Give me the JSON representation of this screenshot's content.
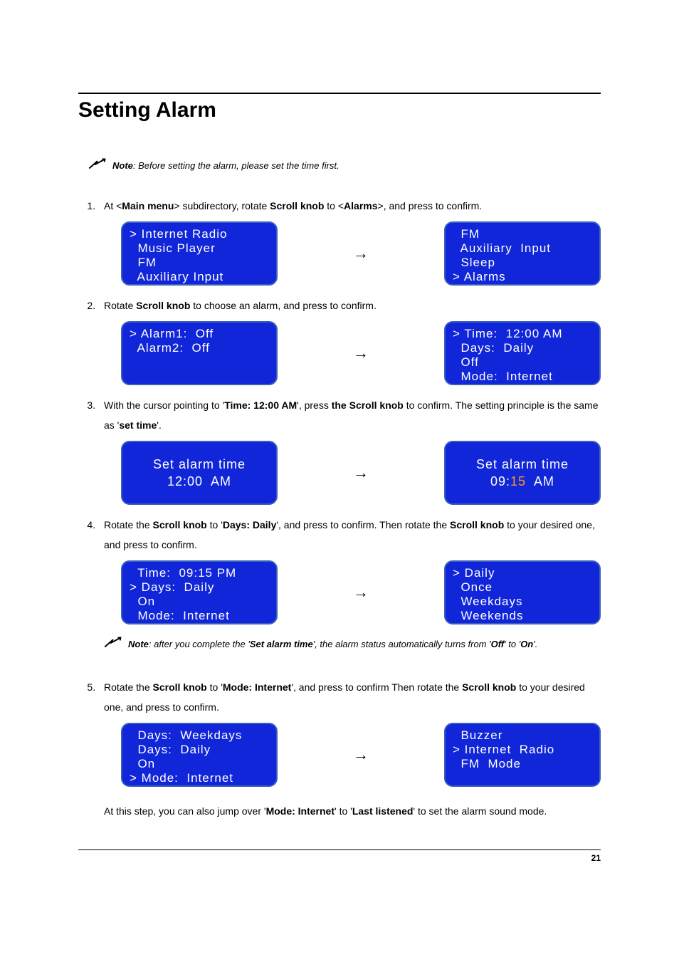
{
  "title": "Setting Alarm",
  "page_number": "21",
  "colors": {
    "screen_bg": "#1026d8",
    "screen_border": "#3a5fbf",
    "screen_text": "#ffffff",
    "highlight": "#ff9a1a"
  },
  "notes": {
    "n1_prefix": "Note",
    "n1_body": ": Before setting the alarm, please set the time first.",
    "n2_prefix": "Note",
    "n2_body_a": ": after you complete the '",
    "n2_bold": "Set alarm time",
    "n2_body_b": "', the alarm status automatically turns from '",
    "n2_off": "Off",
    "n2_body_c": "' to '",
    "n2_on": "On",
    "n2_body_d": "'."
  },
  "steps": {
    "s1_a": "At <",
    "s1_b": "Main menu",
    "s1_c": "> subdirectory, rotate ",
    "s1_d": "Scroll knob",
    "s1_e": " to <",
    "s1_f": "Alarms",
    "s1_g": ">, and press to confirm.",
    "s2_a": "Rotate ",
    "s2_b": "Scroll knob",
    "s2_c": " to choose an alarm, and press to confirm.",
    "s3_a": "With the cursor pointing to '",
    "s3_b": "Time: 12:00 AM",
    "s3_c": "', press ",
    "s3_d": "the Scroll knob",
    "s3_e": " to confirm. The setting principle is the same as '",
    "s3_f": "set time",
    "s3_g": "'.",
    "s4_a": "Rotate the ",
    "s4_b": "Scroll knob",
    "s4_c": " to '",
    "s4_d": "Days: Daily",
    "s4_e": "', and press to confirm. Then rotate the ",
    "s4_f": "Scroll knob",
    "s4_g": " to your desired one, and press to confirm.",
    "s5_a": "Rotate the ",
    "s5_b": "Scroll knob",
    "s5_c": " to '",
    "s5_d": "Mode: Internet",
    "s5_e": "', and press to confirm Then rotate the ",
    "s5_f": "Scroll knob",
    "s5_g": " to your desired one, and press to confirm.",
    "s5_tail_a": "At this step, you can also jump over '",
    "s5_tail_b": "Mode: Internet",
    "s5_tail_c": "' to '",
    "s5_tail_d": "Last listened",
    "s5_tail_e": "' to set the alarm sound mode."
  },
  "screens": {
    "r1a": {
      "caret_idx": 0,
      "lines": [
        "Internet Radio",
        "Music Player",
        "FM",
        "Auxiliary Input"
      ]
    },
    "r1b": {
      "caret_idx": 3,
      "lines": [
        "FM",
        "Auxiliary  Input",
        "Sleep",
        "Alarms"
      ]
    },
    "r2a": {
      "caret_idx": 0,
      "lines": [
        "Alarm1:  Off",
        "Alarm2:  Off"
      ]
    },
    "r2b": {
      "caret_idx": 0,
      "lines": [
        "Time:  12:00 AM",
        "Days:  Daily",
        "Off",
        "Mode:  Internet"
      ]
    },
    "r3a": {
      "center": true,
      "title": "Set alarm time",
      "value": "12:00  AM"
    },
    "r3b": {
      "center": true,
      "title": "Set alarm time",
      "value_pre": "09:",
      "value_hi": "15",
      "value_post": "  AM"
    },
    "r4a": {
      "caret_idx": 1,
      "lines": [
        "Time:  09:15 PM",
        "Days:  Daily",
        "On",
        "Mode:  Internet"
      ]
    },
    "r4b": {
      "caret_idx": 0,
      "lines": [
        "Daily",
        "Once",
        "Weekdays",
        "Weekends"
      ]
    },
    "r5a": {
      "caret_idx": 3,
      "lines": [
        "Days:  Weekdays",
        "Days:  Daily",
        "On",
        "Mode:  Internet"
      ]
    },
    "r5b": {
      "caret_idx": 1,
      "lines": [
        "Buzzer",
        "Internet  Radio",
        "FM  Mode"
      ]
    }
  },
  "arrow_glyph": "→",
  "caret_glyph": ">"
}
